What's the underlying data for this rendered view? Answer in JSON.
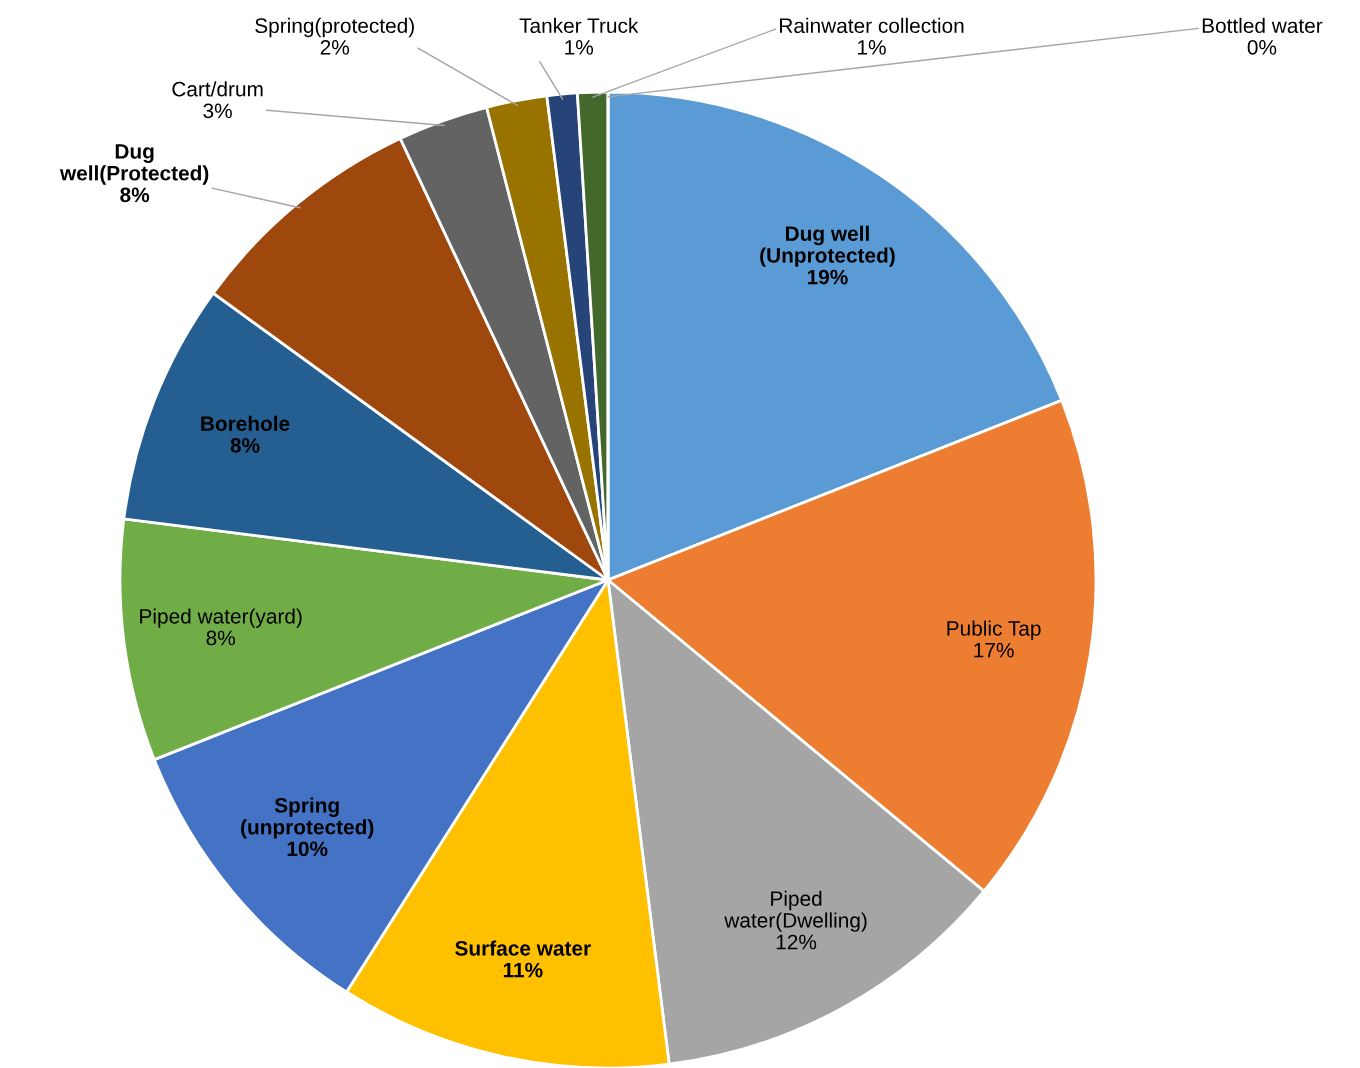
{
  "chart_data": {
    "type": "pie",
    "categories": [
      "Dug well\n(Unprotected)",
      "Public Tap",
      "Piped\nwater(Dwelling)",
      "Surface water",
      "Spring\n(unprotected)",
      "Piped water(yard)",
      "Borehole",
      "Dug\nwell(Protected)",
      "Cart/drum",
      "Spring(protected)",
      "Tanker Truck",
      "Rainwater collection",
      "Bottled water"
    ],
    "values": [
      19,
      17,
      12,
      11,
      10,
      8,
      8,
      8,
      3,
      2,
      1,
      1,
      0
    ],
    "colors": [
      "#5b9bd5",
      "#ed7d31",
      "#a5a5a5",
      "#ffc000",
      "#4472c4",
      "#70ad47",
      "#255e91",
      "#9e480e",
      "#636363",
      "#997300",
      "#264478",
      "#43682b",
      "#7cafdd"
    ],
    "value_labels": [
      "19%",
      "17%",
      "12%",
      "11%",
      "10%",
      "8%",
      "8%",
      "8%",
      "3%",
      "2%",
      "1%",
      "1%",
      "0%"
    ],
    "legend": false
  }
}
